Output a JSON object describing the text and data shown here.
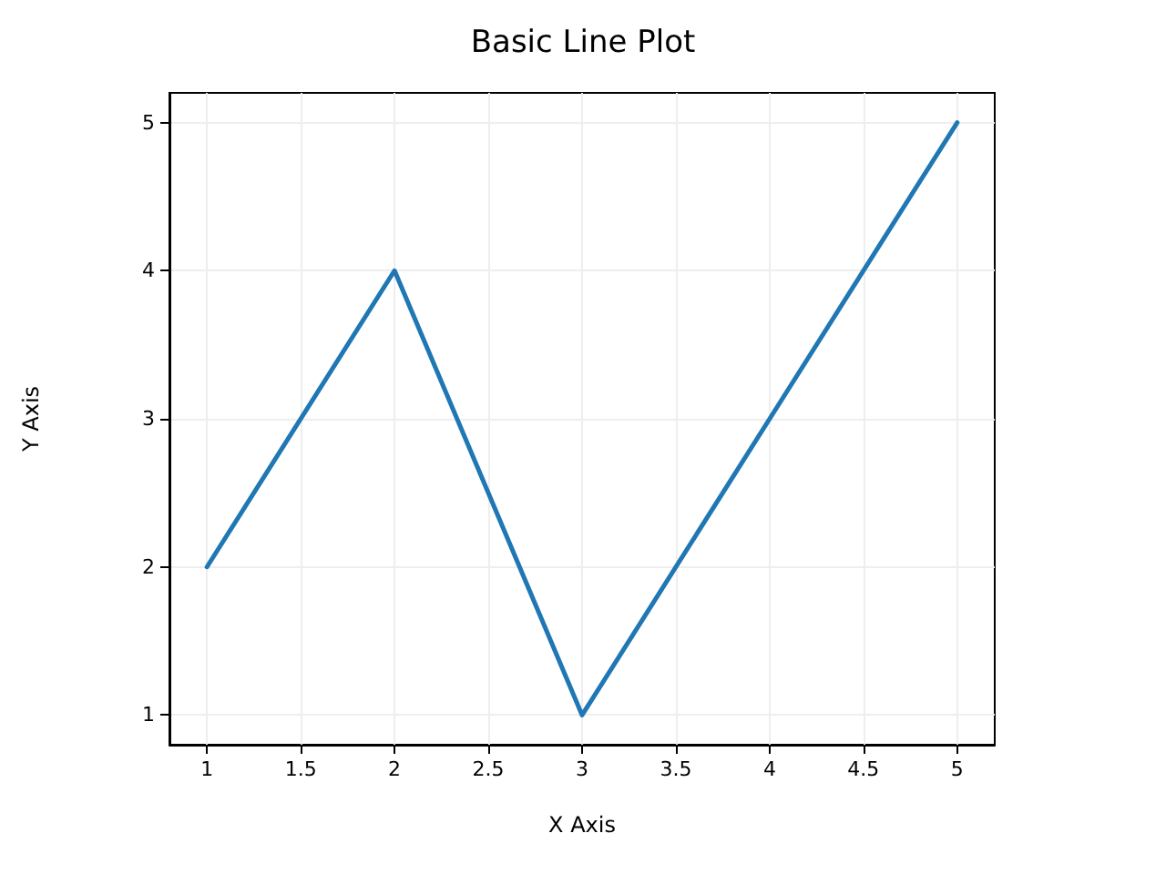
{
  "chart_data": {
    "type": "line",
    "title": "Basic Line Plot",
    "xlabel": "X Axis",
    "ylabel": "Y Axis",
    "x": [
      1,
      2,
      3,
      4,
      5
    ],
    "series": [
      {
        "color": "#1f77b4",
        "values": [
          2,
          4,
          1,
          3,
          5
        ]
      }
    ],
    "xlim": [
      0.8,
      5.2
    ],
    "xticks": [
      1,
      1.5,
      2,
      2.5,
      3,
      3.5,
      4,
      4.5,
      5
    ],
    "ylim": [
      0.8,
      5.2
    ],
    "yticks": [
      1,
      2,
      3,
      4,
      5
    ],
    "grid": true,
    "marker": "none",
    "line_style": "solid"
  }
}
